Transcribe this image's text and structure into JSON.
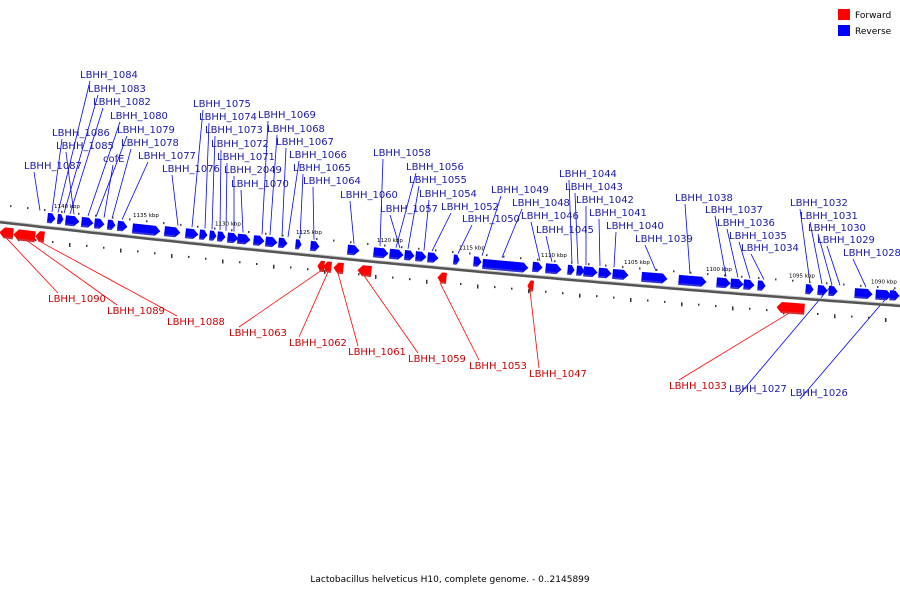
{
  "legend": [
    {
      "label": "Forward",
      "color": "#ff0000"
    },
    {
      "label": "Reverse",
      "color": "#0000ff"
    }
  ],
  "caption": "Lactobacillus helveticus H10, complete genome. - 0..2145899",
  "colors": {
    "forward": "#ff0000",
    "reverse": "#0000ff",
    "forward_label": "#cc0000",
    "reverse_label": "#1a1aaa",
    "axis": "#555555"
  },
  "ticks": [
    "1140 kbp",
    "1135 kbp",
    "1130 kbp",
    "1125 kbp",
    "1120 kbp",
    "1115 kbp",
    "1110 kbp",
    "1105 kbp",
    "1100 kbp",
    "1095 kbp",
    "1090 kbp"
  ],
  "reverse_labels": [
    "LBHH_1084",
    "LBHH_1083",
    "LBHH_1082",
    "LBHH_1080",
    "LBHH_1079",
    "LBHH_1086",
    "LBHH_1078",
    "LBHH_1085",
    "LBHH_1077",
    "cofE",
    "LBHH_1087",
    "LBHH_1076",
    "LBHH_1075",
    "LBHH_1074",
    "LBHH_1073",
    "LBHH_1072",
    "LBHH_1071",
    "LBHH_2049",
    "LBHH_1070",
    "LBHH_1069",
    "LBHH_1068",
    "LBHH_1067",
    "LBHH_1066",
    "LBHH_1065",
    "LBHH_1064",
    "LBHH_1060",
    "LBHH_1058",
    "LBHH_1056",
    "LBHH_1057",
    "LBHH_1055",
    "LBHH_1054",
    "LBHH_1052",
    "LBHH_1050",
    "LBHH_1049",
    "LBHH_1048",
    "LBHH_1046",
    "LBHH_1045",
    "LBHH_1044",
    "LBHH_1043",
    "LBHH_1042",
    "LBHH_1041",
    "LBHH_1040",
    "LBHH_1039",
    "LBHH_1038",
    "LBHH_1037",
    "LBHH_1036",
    "LBHH_1035",
    "LBHH_1034",
    "LBHH_1032",
    "LBHH_1031",
    "LBHH_1030",
    "LBHH_1029",
    "LBHH_1028",
    "LBHH_1027",
    "LBHH_1026"
  ],
  "forward_labels": [
    "LBHH_1090",
    "LBHH_1089",
    "LBHH_1088",
    "LBHH_1063",
    "LBHH_1062",
    "LBHH_1061",
    "LBHH_1059",
    "LBHH_1053",
    "LBHH_1047",
    "LBHH_1033"
  ]
}
